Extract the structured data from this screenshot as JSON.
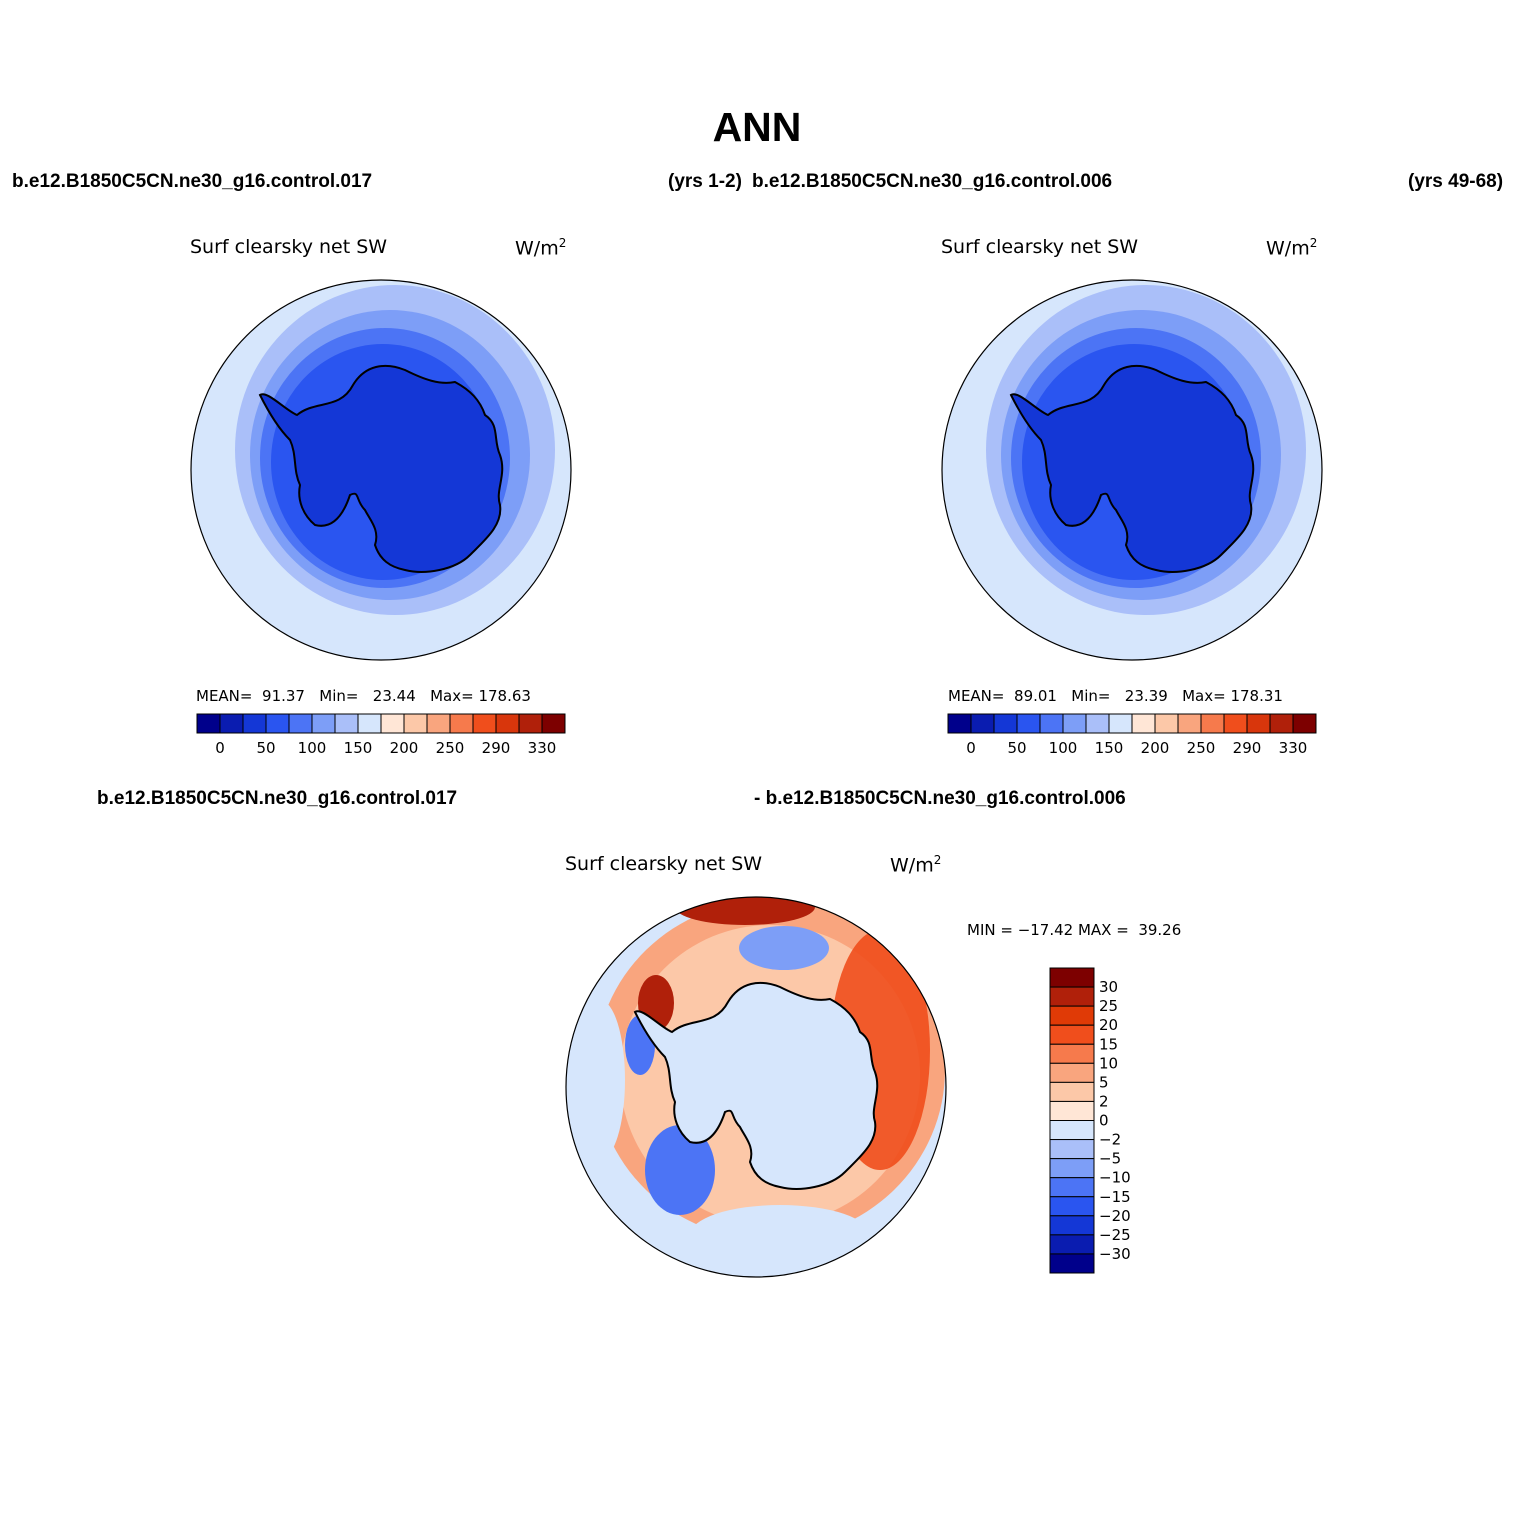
{
  "title": "ANN",
  "top_left_header": {
    "case": "b.e12.B1850C5CN.ne30_g16.control.017",
    "years": "(yrs 1-2)"
  },
  "top_right_header": {
    "case": "b.e12.B1850C5CN.ne30_g16.control.006",
    "years": "(yrs 49-68)"
  },
  "bottom_header": {
    "left": "b.e12.B1850C5CN.ne30_g16.control.017",
    "right": "- b.e12.B1850C5CN.ne30_g16.control.006"
  },
  "panels": [
    {
      "id": "case1",
      "variable": "Surf clearsky net SW",
      "units": "W/m",
      "units_sup": "2",
      "mean_label": "MEAN=",
      "mean": "91.37",
      "min_label": "Min=",
      "min": "23.44",
      "max_label": "Max=",
      "max": "178.63"
    },
    {
      "id": "case2",
      "variable": "Surf clearsky net SW",
      "units": "W/m",
      "units_sup": "2",
      "mean_label": "MEAN=",
      "mean": "89.01",
      "min_label": "Min=",
      "min": "23.39",
      "max_label": "Max=",
      "max": "178.31"
    },
    {
      "id": "diff",
      "variable": "Surf clearsky net SW",
      "units": "W/m",
      "units_sup": "2",
      "minmax": "MIN = −17.42 MAX =  39.26"
    }
  ],
  "colorbar_abs": {
    "tick_labels": [
      "0",
      "50",
      "100",
      "150",
      "200",
      "250",
      "290",
      "330"
    ],
    "colors": [
      "#00008b",
      "#0a1cb0",
      "#1437d6",
      "#2a55f0",
      "#4c74f5",
      "#7d9ef7",
      "#aabff9",
      "#d6e6fc",
      "#ffe6d6",
      "#fcc8a8",
      "#f9a57e",
      "#f67a4c",
      "#f04e1c",
      "#d8360c",
      "#b0200a",
      "#7d0000"
    ]
  },
  "colorbar_diff": {
    "tick_labels": [
      "30",
      "25",
      "20",
      "15",
      "10",
      "5",
      "2",
      "0",
      "−2",
      "−5",
      "−10",
      "−15",
      "−20",
      "−25",
      "−30"
    ],
    "colors": [
      "#7d0000",
      "#b0200a",
      "#e03a06",
      "#f04e1c",
      "#f67a4c",
      "#f9a57e",
      "#fcc8a8",
      "#ffe6d6",
      "#d6e6fc",
      "#aabff9",
      "#7d9ef7",
      "#4c74f5",
      "#2a55f0",
      "#1437d6",
      "#0a1cb0",
      "#00008b"
    ]
  },
  "map_colors": {
    "ocean_outer": "#d6e6fc",
    "ring1": "#aabff9",
    "ring2": "#7d9ef7",
    "ring3": "#4c74f5",
    "ring4": "#2a55f0",
    "land": "#1437d6",
    "land_dark": "#0a1cb0",
    "diff_pos_light": "#ffe6d6",
    "diff_pos_mid": "#f9a57e",
    "diff_pos_strong": "#f04e1c",
    "diff_pos_max": "#b0200a",
    "diff_neg_light": "#aabff9",
    "diff_neg_mid": "#4c74f5",
    "diff_land": "#d6e6fc"
  }
}
